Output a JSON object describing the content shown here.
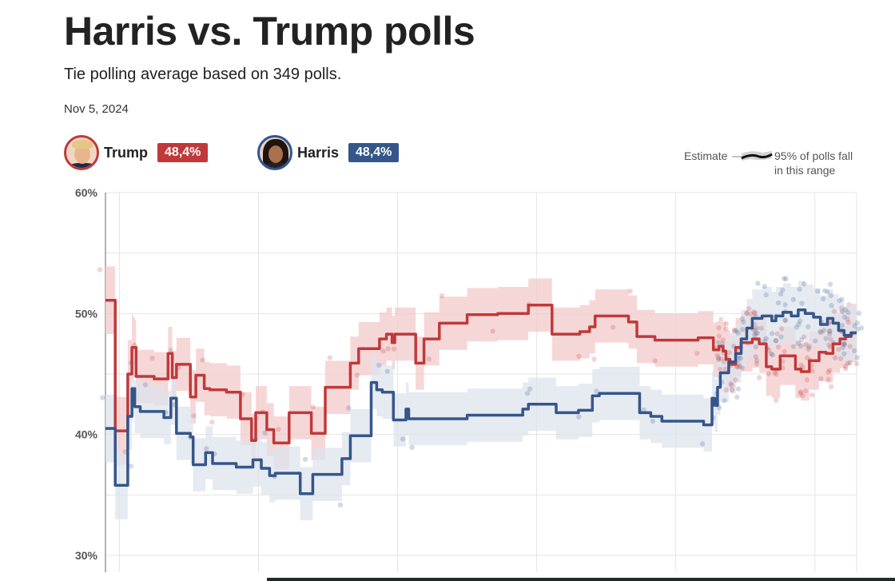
{
  "title": "Harris vs. Trump polls",
  "subtitle": "Tie polling average based on 349 polls.",
  "date": "Nov 5, 2024",
  "candidates": {
    "trump": {
      "name": "Trump",
      "value": "48,4%",
      "color": "#c0393b"
    },
    "harris": {
      "name": "Harris",
      "value": "48,4%",
      "color": "#34568b"
    }
  },
  "legend": {
    "estimate": "Estimate",
    "range_line1": "95% of polls fall",
    "range_line2": "in this range"
  },
  "chart_data": {
    "type": "line",
    "title": "Harris vs. Trump polls",
    "xlabel": "",
    "ylabel": "",
    "ylim": [
      30,
      60
    ],
    "yticks": [
      30,
      40,
      50,
      60
    ],
    "ytick_labels": [
      "30%",
      "40%",
      "50%",
      "60%"
    ],
    "x_range": [
      0,
      540
    ],
    "vgrid_x": [
      10,
      110,
      210,
      310,
      410,
      510
    ],
    "grid": true,
    "series": [
      {
        "name": "Trump",
        "color": "#c0393b",
        "band_color": "#f3c9c9",
        "points": [
          [
            0,
            51.1
          ],
          [
            7,
            51.1
          ],
          [
            7,
            40.3
          ],
          [
            16,
            40.3
          ],
          [
            16,
            45
          ],
          [
            19,
            45
          ],
          [
            19,
            47.2
          ],
          [
            22,
            47.2
          ],
          [
            22,
            44.8
          ],
          [
            35,
            44.8
          ],
          [
            35,
            44.6
          ],
          [
            45,
            44.6
          ],
          [
            45,
            46.7
          ],
          [
            48,
            46.7
          ],
          [
            48,
            44.7
          ],
          [
            51,
            44.7
          ],
          [
            51,
            45.8
          ],
          [
            61,
            45.8
          ],
          [
            61,
            43.1
          ],
          [
            65,
            43.1
          ],
          [
            65,
            44.9
          ],
          [
            71,
            44.9
          ],
          [
            71,
            43.8
          ],
          [
            75,
            43.8
          ],
          [
            75,
            43.7
          ],
          [
            87,
            43.7
          ],
          [
            87,
            43.5
          ],
          [
            97,
            43.5
          ],
          [
            97,
            41.3
          ],
          [
            105,
            41.3
          ],
          [
            105,
            39.5
          ],
          [
            108,
            39.5
          ],
          [
            108,
            41.8
          ],
          [
            116,
            41.8
          ],
          [
            116,
            40.4
          ],
          [
            121,
            40.4
          ],
          [
            121,
            39.3
          ],
          [
            132,
            39.3
          ],
          [
            132,
            41.8
          ],
          [
            148,
            41.8
          ],
          [
            148,
            40.1
          ],
          [
            158,
            40.1
          ],
          [
            158,
            43.9
          ],
          [
            176,
            43.9
          ],
          [
            176,
            45.9
          ],
          [
            182,
            45.9
          ],
          [
            182,
            47.1
          ],
          [
            197,
            47.1
          ],
          [
            197,
            47.9
          ],
          [
            202,
            47.9
          ],
          [
            202,
            48.3
          ],
          [
            206,
            48.3
          ],
          [
            206,
            47.6
          ],
          [
            208,
            47.6
          ],
          [
            208,
            48.3
          ],
          [
            223,
            48.3
          ],
          [
            223,
            45.9
          ],
          [
            229,
            45.9
          ],
          [
            229,
            47.9
          ],
          [
            240,
            47.9
          ],
          [
            240,
            49.2
          ],
          [
            260,
            49.2
          ],
          [
            260,
            49.9
          ],
          [
            282,
            49.9
          ],
          [
            282,
            50
          ],
          [
            304,
            50
          ],
          [
            304,
            50.7
          ],
          [
            321,
            50.7
          ],
          [
            321,
            48.3
          ],
          [
            341,
            48.3
          ],
          [
            341,
            48.5
          ],
          [
            348,
            48.5
          ],
          [
            348,
            48.9
          ],
          [
            352,
            48.9
          ],
          [
            352,
            49.8
          ],
          [
            366,
            49.8
          ],
          [
            366,
            49.8
          ],
          [
            376,
            49.8
          ],
          [
            376,
            49.3
          ],
          [
            382,
            49.3
          ],
          [
            382,
            48.1
          ],
          [
            395,
            48.1
          ],
          [
            395,
            47.8
          ],
          [
            426,
            47.8
          ],
          [
            426,
            48
          ],
          [
            437,
            48
          ],
          [
            437,
            47
          ],
          [
            441,
            47
          ],
          [
            441,
            47.3
          ],
          [
            444,
            47.3
          ],
          [
            444,
            46.9
          ],
          [
            446,
            46.9
          ],
          [
            446,
            46.2
          ],
          [
            449,
            46.2
          ],
          [
            449,
            45.8
          ],
          [
            453,
            45.8
          ],
          [
            453,
            47.2
          ],
          [
            457,
            47.2
          ],
          [
            457,
            47.6
          ],
          [
            465,
            47.6
          ],
          [
            465,
            47.9
          ],
          [
            470,
            47.9
          ],
          [
            470,
            47.5
          ],
          [
            475,
            47.5
          ],
          [
            475,
            45.6
          ],
          [
            479,
            45.6
          ],
          [
            479,
            45.4
          ],
          [
            485,
            45.4
          ],
          [
            485,
            46.5
          ],
          [
            496,
            46.5
          ],
          [
            496,
            45.4
          ],
          [
            500,
            45.4
          ],
          [
            500,
            45.2
          ],
          [
            506,
            45.2
          ],
          [
            506,
            46.1
          ],
          [
            513,
            46.1
          ],
          [
            513,
            46.8
          ],
          [
            518,
            46.8
          ],
          [
            518,
            46.7
          ],
          [
            523,
            46.7
          ],
          [
            523,
            47.5
          ],
          [
            528,
            47.5
          ],
          [
            528,
            47.9
          ],
          [
            532,
            47.9
          ],
          [
            532,
            48.1
          ],
          [
            536,
            48.1
          ],
          [
            536,
            48.4
          ],
          [
            540,
            48.4
          ]
        ]
      },
      {
        "name": "Harris",
        "color": "#34568b",
        "band_color": "#dde3ec",
        "points": [
          [
            0,
            40.5
          ],
          [
            7,
            40.5
          ],
          [
            7,
            35.8
          ],
          [
            16,
            35.8
          ],
          [
            16,
            41.5
          ],
          [
            19,
            41.5
          ],
          [
            19,
            43.8
          ],
          [
            21,
            43.8
          ],
          [
            21,
            42.3
          ],
          [
            25,
            42.3
          ],
          [
            25,
            41.9
          ],
          [
            42,
            41.9
          ],
          [
            42,
            41.4
          ],
          [
            47,
            41.4
          ],
          [
            47,
            43
          ],
          [
            51,
            43
          ],
          [
            51,
            40.1
          ],
          [
            61,
            40.1
          ],
          [
            61,
            39.8
          ],
          [
            63,
            39.8
          ],
          [
            63,
            37.5
          ],
          [
            72,
            37.5
          ],
          [
            72,
            38.5
          ],
          [
            77,
            38.5
          ],
          [
            77,
            37.6
          ],
          [
            94,
            37.6
          ],
          [
            94,
            37.3
          ],
          [
            106,
            37.3
          ],
          [
            106,
            37.9
          ],
          [
            112,
            37.9
          ],
          [
            112,
            37.2
          ],
          [
            118,
            37.2
          ],
          [
            118,
            36.6
          ],
          [
            122,
            36.6
          ],
          [
            122,
            36.8
          ],
          [
            140,
            36.8
          ],
          [
            140,
            35.1
          ],
          [
            149,
            35.1
          ],
          [
            149,
            36.7
          ],
          [
            170,
            36.7
          ],
          [
            170,
            38
          ],
          [
            176,
            38
          ],
          [
            176,
            39.9
          ],
          [
            191,
            39.9
          ],
          [
            191,
            44.3
          ],
          [
            195,
            44.3
          ],
          [
            195,
            43.7
          ],
          [
            199,
            43.7
          ],
          [
            199,
            43.5
          ],
          [
            207,
            43.5
          ],
          [
            207,
            41.2
          ],
          [
            216,
            41.2
          ],
          [
            216,
            42.1
          ],
          [
            218,
            42.1
          ],
          [
            218,
            41.3
          ],
          [
            260,
            41.3
          ],
          [
            260,
            41.6
          ],
          [
            300,
            41.6
          ],
          [
            300,
            42.1
          ],
          [
            304,
            42.1
          ],
          [
            304,
            42.5
          ],
          [
            324,
            42.5
          ],
          [
            324,
            41.8
          ],
          [
            340,
            41.8
          ],
          [
            340,
            42
          ],
          [
            350,
            42
          ],
          [
            350,
            43.2
          ],
          [
            355,
            43.2
          ],
          [
            355,
            43.4
          ],
          [
            384,
            43.4
          ],
          [
            384,
            41.8
          ],
          [
            392,
            41.8
          ],
          [
            392,
            41.5
          ],
          [
            400,
            41.5
          ],
          [
            400,
            41.1
          ],
          [
            430,
            41.1
          ],
          [
            430,
            40.8
          ],
          [
            436,
            40.8
          ],
          [
            436,
            43
          ],
          [
            438,
            43
          ],
          [
            438,
            42.4
          ],
          [
            440,
            42.4
          ],
          [
            440,
            43.9
          ],
          [
            442,
            43.9
          ],
          [
            442,
            45.1
          ],
          [
            448,
            45.1
          ],
          [
            448,
            46
          ],
          [
            453,
            46
          ],
          [
            453,
            46.7
          ],
          [
            457,
            46.7
          ],
          [
            457,
            47.9
          ],
          [
            461,
            47.9
          ],
          [
            461,
            48.8
          ],
          [
            465,
            48.8
          ],
          [
            465,
            49.6
          ],
          [
            472,
            49.6
          ],
          [
            472,
            49.8
          ],
          [
            479,
            49.8
          ],
          [
            479,
            49.4
          ],
          [
            482,
            49.4
          ],
          [
            482,
            49.8
          ],
          [
            487,
            49.8
          ],
          [
            487,
            50.1
          ],
          [
            493,
            50.1
          ],
          [
            493,
            49.8
          ],
          [
            498,
            49.8
          ],
          [
            498,
            50.3
          ],
          [
            503,
            50.3
          ],
          [
            503,
            50
          ],
          [
            509,
            50
          ],
          [
            509,
            49.7
          ],
          [
            514,
            49.7
          ],
          [
            514,
            49.1
          ],
          [
            519,
            49.1
          ],
          [
            519,
            49.6
          ],
          [
            523,
            49.6
          ],
          [
            523,
            49.2
          ],
          [
            527,
            49.2
          ],
          [
            527,
            48.6
          ],
          [
            531,
            48.6
          ],
          [
            531,
            48.2
          ],
          [
            536,
            48.2
          ],
          [
            536,
            48.4
          ],
          [
            540,
            48.4
          ]
        ]
      }
    ]
  }
}
